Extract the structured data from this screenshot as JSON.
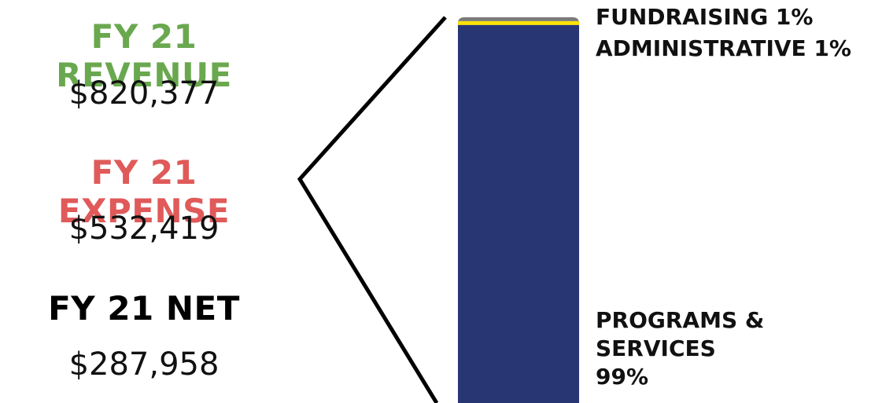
{
  "revenue": {
    "title": "FY 21 REVENUE",
    "value": "$820,377",
    "color": "#6aa84f"
  },
  "expense": {
    "title": "FY 21 EXPENSE",
    "value": "$532,419",
    "color": "#e05a5a"
  },
  "net": {
    "title": "FY 21 NET",
    "value": "$287,958",
    "color": "#000000"
  },
  "chart_data": {
    "type": "bar",
    "stacked": true,
    "categories": [
      "FY 21 EXPENSE"
    ],
    "series": [
      {
        "name": "PROGRAMS & SERVICES",
        "values": [
          99
        ],
        "label": "99%",
        "color": "#283673"
      },
      {
        "name": "ADMINISTRATIVE",
        "values": [
          1
        ],
        "label": "1%",
        "color": "#ffe400"
      },
      {
        "name": "FUNDRAISING",
        "values": [
          1
        ],
        "label": "1%",
        "color": "#7a7a7a"
      }
    ],
    "title": "",
    "xlabel": "",
    "ylabel": "",
    "ylim": [
      0,
      101
    ],
    "grid": false,
    "legend": "right"
  },
  "labels": {
    "fundraising": "FUNDRAISING 1%",
    "administrative": "ADMINISTRATIVE 1%",
    "programs_line1": "PROGRAMS &",
    "programs_line2": "SERVICES",
    "programs_line3": "99%"
  }
}
